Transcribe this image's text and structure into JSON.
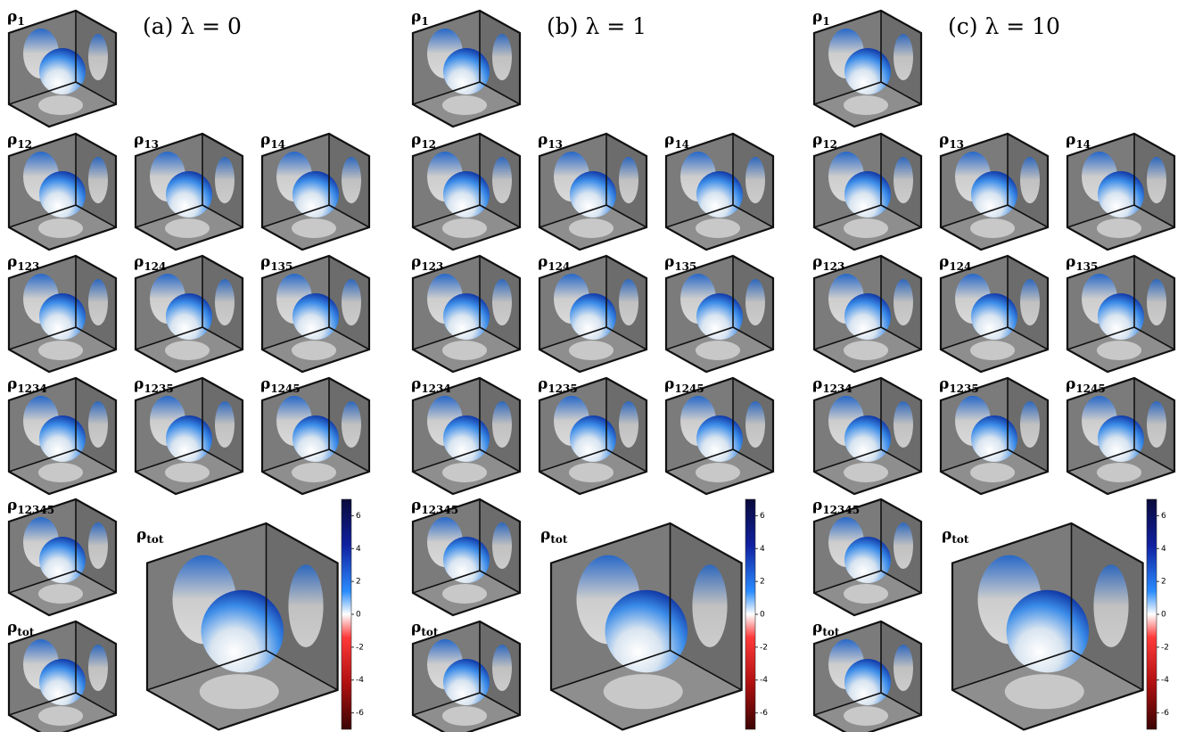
{
  "panels": [
    {
      "title": "(a) λ = 0",
      "cubes": [
        {
          "sym": "ρ",
          "sub": "1"
        },
        {
          "sym": "ρ",
          "sub": "12"
        },
        {
          "sym": "ρ",
          "sub": "13"
        },
        {
          "sym": "ρ",
          "sub": "14"
        },
        {
          "sym": "ρ",
          "sub": "123"
        },
        {
          "sym": "ρ",
          "sub": "124"
        },
        {
          "sym": "ρ",
          "sub": "135"
        },
        {
          "sym": "ρ",
          "sub": "1234"
        },
        {
          "sym": "ρ",
          "sub": "1235"
        },
        {
          "sym": "ρ",
          "sub": "1245"
        },
        {
          "sym": "ρ",
          "sub": "12345"
        },
        {
          "sym": "ρ",
          "sub": "tot"
        }
      ],
      "big": {
        "sym": "ρ",
        "sub": "tot"
      },
      "colorbar": {
        "ylim": [
          -7,
          7
        ],
        "yticks": [
          6,
          4,
          2,
          0,
          -2,
          -4,
          -6
        ]
      }
    },
    {
      "title": "(b) λ = 1",
      "cubes": [
        {
          "sym": "ρ",
          "sub": "1"
        },
        {
          "sym": "ρ",
          "sub": "12"
        },
        {
          "sym": "ρ",
          "sub": "13"
        },
        {
          "sym": "ρ",
          "sub": "14"
        },
        {
          "sym": "ρ",
          "sub": "123"
        },
        {
          "sym": "ρ",
          "sub": "124"
        },
        {
          "sym": "ρ",
          "sub": "135"
        },
        {
          "sym": "ρ",
          "sub": "1234"
        },
        {
          "sym": "ρ",
          "sub": "1235"
        },
        {
          "sym": "ρ",
          "sub": "1245"
        },
        {
          "sym": "ρ",
          "sub": "12345"
        },
        {
          "sym": "ρ",
          "sub": "tot"
        }
      ],
      "big": {
        "sym": "ρ",
        "sub": "tot"
      },
      "colorbar": {
        "ylim": [
          -7,
          7
        ],
        "yticks": [
          6,
          4,
          2,
          0,
          -2,
          -4,
          -6
        ]
      }
    },
    {
      "title": "(c) λ = 10",
      "cubes": [
        {
          "sym": "ρ",
          "sub": "1"
        },
        {
          "sym": "ρ",
          "sub": "12"
        },
        {
          "sym": "ρ",
          "sub": "13"
        },
        {
          "sym": "ρ",
          "sub": "14"
        },
        {
          "sym": "ρ",
          "sub": "123"
        },
        {
          "sym": "ρ",
          "sub": "124"
        },
        {
          "sym": "ρ",
          "sub": "135"
        },
        {
          "sym": "ρ",
          "sub": "1234"
        },
        {
          "sym": "ρ",
          "sub": "1235"
        },
        {
          "sym": "ρ",
          "sub": "1245"
        },
        {
          "sym": "ρ",
          "sub": "12345"
        },
        {
          "sym": "ρ",
          "sub": "tot"
        }
      ],
      "big": {
        "sym": "ρ",
        "sub": "tot"
      },
      "colorbar": {
        "ylim": [
          -7,
          7
        ],
        "yticks": [
          6,
          4,
          2,
          0,
          -2,
          -4,
          -6
        ]
      }
    }
  ]
}
